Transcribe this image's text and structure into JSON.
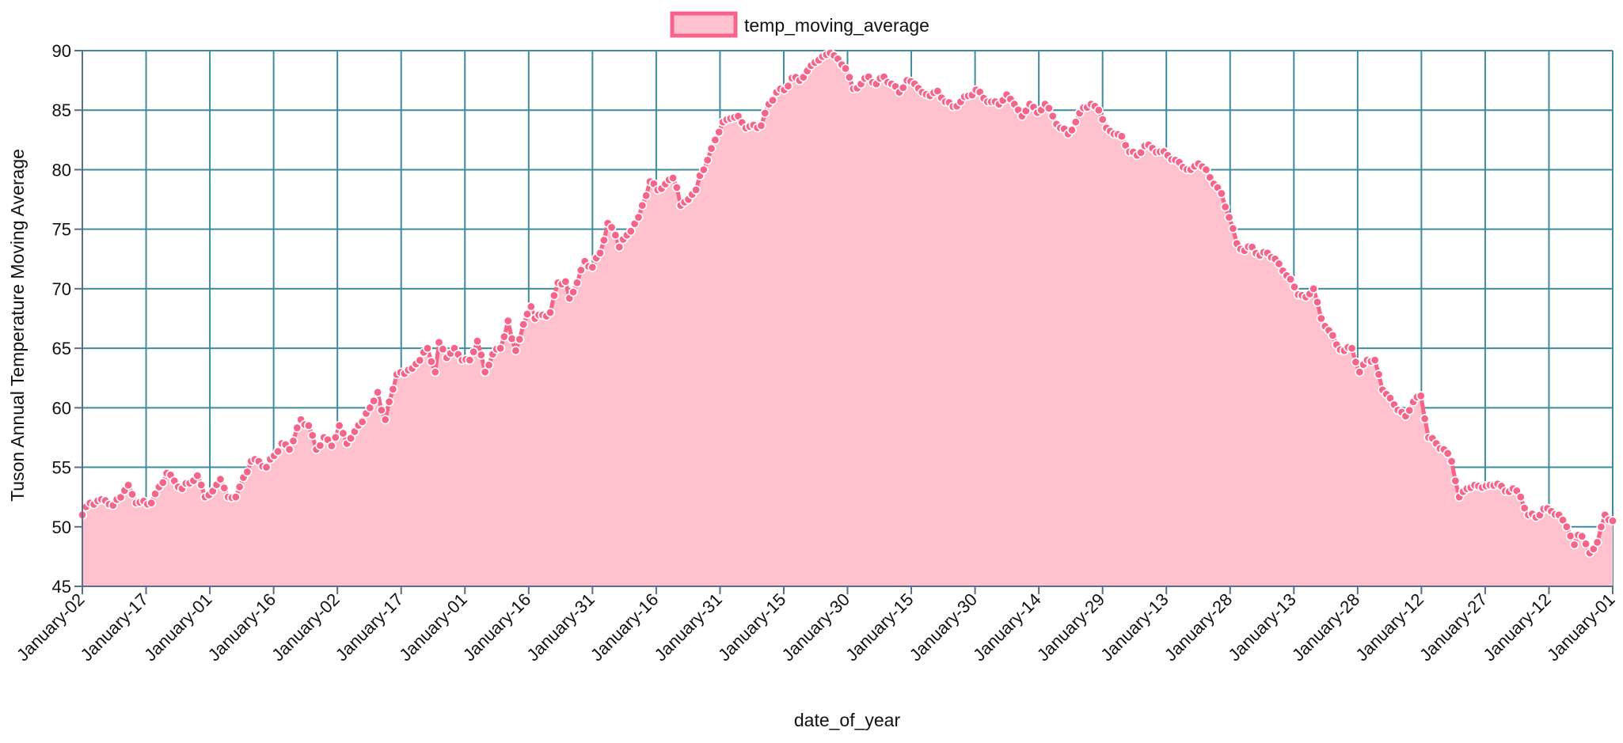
{
  "chart_data": {
    "type": "area",
    "xlabel": "date_of_year",
    "ylabel": "Tuson Annual Temperature Moving Average",
    "ylim": [
      45,
      90
    ],
    "yticks": [
      45,
      50,
      55,
      60,
      65,
      70,
      75,
      80,
      85,
      90
    ],
    "grid": true,
    "legend_position": "top-center",
    "x_tick_labels": [
      "January-02",
      "January-17",
      "January-01",
      "January-16",
      "January-02",
      "January-17",
      "January-01",
      "January-16",
      "January-31",
      "January-16",
      "January-31",
      "January-15",
      "January-30",
      "January-15",
      "January-30",
      "January-14",
      "January-29",
      "January-13",
      "January-28",
      "January-13",
      "January-28",
      "January-12",
      "January-27",
      "January-12",
      "January-01"
    ],
    "series": [
      {
        "name": "temp_moving_average",
        "line_color": "#f7648a",
        "fill_color": "#ffc0cf",
        "marker_edge": "#ffffff",
        "keyframes": [
          [
            0,
            51.0
          ],
          [
            2,
            52.0
          ],
          [
            6,
            52.2
          ],
          [
            8,
            51.8
          ],
          [
            12,
            53.5
          ],
          [
            14,
            52.0
          ],
          [
            18,
            52.0
          ],
          [
            22,
            54.5
          ],
          [
            26,
            53.2
          ],
          [
            30,
            54.3
          ],
          [
            32,
            52.5
          ],
          [
            34,
            53.0
          ],
          [
            36,
            54.0
          ],
          [
            38,
            52.5
          ],
          [
            40,
            52.5
          ],
          [
            44,
            55.5
          ],
          [
            46,
            55.5
          ],
          [
            48,
            55.0
          ],
          [
            52,
            57.0
          ],
          [
            54,
            56.5
          ],
          [
            57,
            59.0
          ],
          [
            59,
            58.5
          ],
          [
            61,
            56.5
          ],
          [
            63,
            57.5
          ],
          [
            65,
            56.8
          ],
          [
            67,
            58.5
          ],
          [
            69,
            57.0
          ],
          [
            71,
            58.0
          ],
          [
            75,
            60.0
          ],
          [
            77,
            61.3
          ],
          [
            78,
            59.8
          ],
          [
            79,
            59.0
          ],
          [
            80,
            60.5
          ],
          [
            82,
            62.8
          ],
          [
            86,
            63.3
          ],
          [
            90,
            65.0
          ],
          [
            92,
            63.0
          ],
          [
            93,
            65.5
          ],
          [
            95,
            64.2
          ],
          [
            97,
            65.0
          ],
          [
            99,
            64.0
          ],
          [
            101,
            64.0
          ],
          [
            103,
            65.6
          ],
          [
            105,
            63.0
          ],
          [
            107,
            64.5
          ],
          [
            109,
            65.0
          ],
          [
            111,
            67.3
          ],
          [
            112,
            65.8
          ],
          [
            113,
            64.8
          ],
          [
            115,
            67.0
          ],
          [
            117,
            68.5
          ],
          [
            118,
            67.5
          ],
          [
            122,
            68.0
          ],
          [
            124,
            70.5
          ],
          [
            126,
            70.6
          ],
          [
            127,
            69.2
          ],
          [
            129,
            70.5
          ],
          [
            131,
            72.3
          ],
          [
            133,
            71.8
          ],
          [
            135,
            73.0
          ],
          [
            137,
            75.5
          ],
          [
            139,
            74.5
          ],
          [
            140,
            73.5
          ],
          [
            142,
            74.5
          ],
          [
            145,
            76.0
          ],
          [
            148,
            79.0
          ],
          [
            150,
            78.3
          ],
          [
            152,
            78.8
          ],
          [
            154,
            79.3
          ],
          [
            155,
            78.5
          ],
          [
            156,
            77.0
          ],
          [
            158,
            77.5
          ],
          [
            160,
            78.3
          ],
          [
            161,
            79.5
          ],
          [
            163,
            80.8
          ],
          [
            165,
            82.5
          ],
          [
            167,
            84.0
          ],
          [
            169,
            84.3
          ],
          [
            171,
            84.5
          ],
          [
            173,
            83.5
          ],
          [
            177,
            83.7
          ],
          [
            179,
            85.5
          ],
          [
            181,
            86.5
          ],
          [
            183,
            86.7
          ],
          [
            185,
            87.7
          ],
          [
            187,
            87.5
          ],
          [
            189,
            88.3
          ],
          [
            191,
            89.0
          ],
          [
            193,
            89.5
          ],
          [
            195,
            89.8
          ],
          [
            197,
            89.3
          ],
          [
            199,
            88.5
          ],
          [
            201,
            86.8
          ],
          [
            203,
            87.2
          ],
          [
            205,
            87.8
          ],
          [
            207,
            87.2
          ],
          [
            209,
            87.8
          ],
          [
            211,
            87.2
          ],
          [
            213,
            86.5
          ],
          [
            215,
            87.5
          ],
          [
            217,
            87.2
          ],
          [
            219,
            86.5
          ],
          [
            221,
            86.2
          ],
          [
            223,
            86.6
          ],
          [
            225,
            85.7
          ],
          [
            227,
            85.3
          ],
          [
            229,
            85.7
          ],
          [
            233,
            86.7
          ],
          [
            235,
            86.0
          ],
          [
            237,
            85.7
          ],
          [
            239,
            85.5
          ],
          [
            241,
            86.3
          ],
          [
            243,
            85.5
          ],
          [
            245,
            84.5
          ],
          [
            247,
            85.5
          ],
          [
            249,
            84.8
          ],
          [
            251,
            85.5
          ],
          [
            253,
            84.5
          ],
          [
            255,
            83.5
          ],
          [
            257,
            83.0
          ],
          [
            259,
            84.0
          ],
          [
            261,
            85.2
          ],
          [
            263,
            85.5
          ],
          [
            265,
            85.0
          ],
          [
            267,
            83.5
          ],
          [
            269,
            83.0
          ],
          [
            271,
            82.8
          ],
          [
            273,
            81.5
          ],
          [
            275,
            81.2
          ],
          [
            277,
            82.0
          ],
          [
            279,
            81.8
          ],
          [
            281,
            81.5
          ],
          [
            283,
            81.2
          ],
          [
            285,
            80.8
          ],
          [
            287,
            80.2
          ],
          [
            289,
            80.0
          ],
          [
            291,
            80.5
          ],
          [
            293,
            80.0
          ],
          [
            295,
            78.8
          ],
          [
            297,
            78.0
          ],
          [
            299,
            76.0
          ],
          [
            301,
            73.8
          ],
          [
            303,
            73.2
          ],
          [
            305,
            73.5
          ],
          [
            307,
            72.8
          ],
          [
            309,
            73.0
          ],
          [
            311,
            72.5
          ],
          [
            313,
            71.5
          ],
          [
            315,
            70.8
          ],
          [
            317,
            69.5
          ],
          [
            319,
            69.3
          ],
          [
            321,
            70.0
          ],
          [
            323,
            67.5
          ],
          [
            325,
            66.5
          ],
          [
            327,
            65.3
          ],
          [
            329,
            64.8
          ],
          [
            331,
            65.0
          ],
          [
            333,
            63.0
          ],
          [
            335,
            64.0
          ],
          [
            337,
            64.0
          ],
          [
            339,
            61.5
          ],
          [
            341,
            60.8
          ],
          [
            343,
            59.8
          ],
          [
            345,
            59.3
          ],
          [
            347,
            60.5
          ],
          [
            349,
            61.0
          ],
          [
            351,
            57.5
          ],
          [
            353,
            57.0
          ],
          [
            355,
            56.5
          ],
          [
            357,
            55.5
          ],
          [
            359,
            52.5
          ],
          [
            361,
            53.2
          ],
          [
            363,
            53.5
          ],
          [
            365,
            53.3
          ],
          [
            367,
            53.5
          ],
          [
            369,
            53.6
          ],
          [
            371,
            53.0
          ],
          [
            373,
            53.2
          ],
          [
            375,
            52.5
          ],
          [
            377,
            51.0
          ],
          [
            379,
            50.8
          ],
          [
            381,
            51.5
          ],
          [
            383,
            51.3
          ],
          [
            385,
            51.0
          ],
          [
            387,
            50.0
          ],
          [
            389,
            48.5
          ],
          [
            390,
            49.3
          ],
          [
            391,
            49.2
          ],
          [
            393,
            47.8
          ],
          [
            395,
            48.7
          ],
          [
            397,
            51.0
          ],
          [
            399,
            50.5
          ]
        ]
      }
    ]
  }
}
